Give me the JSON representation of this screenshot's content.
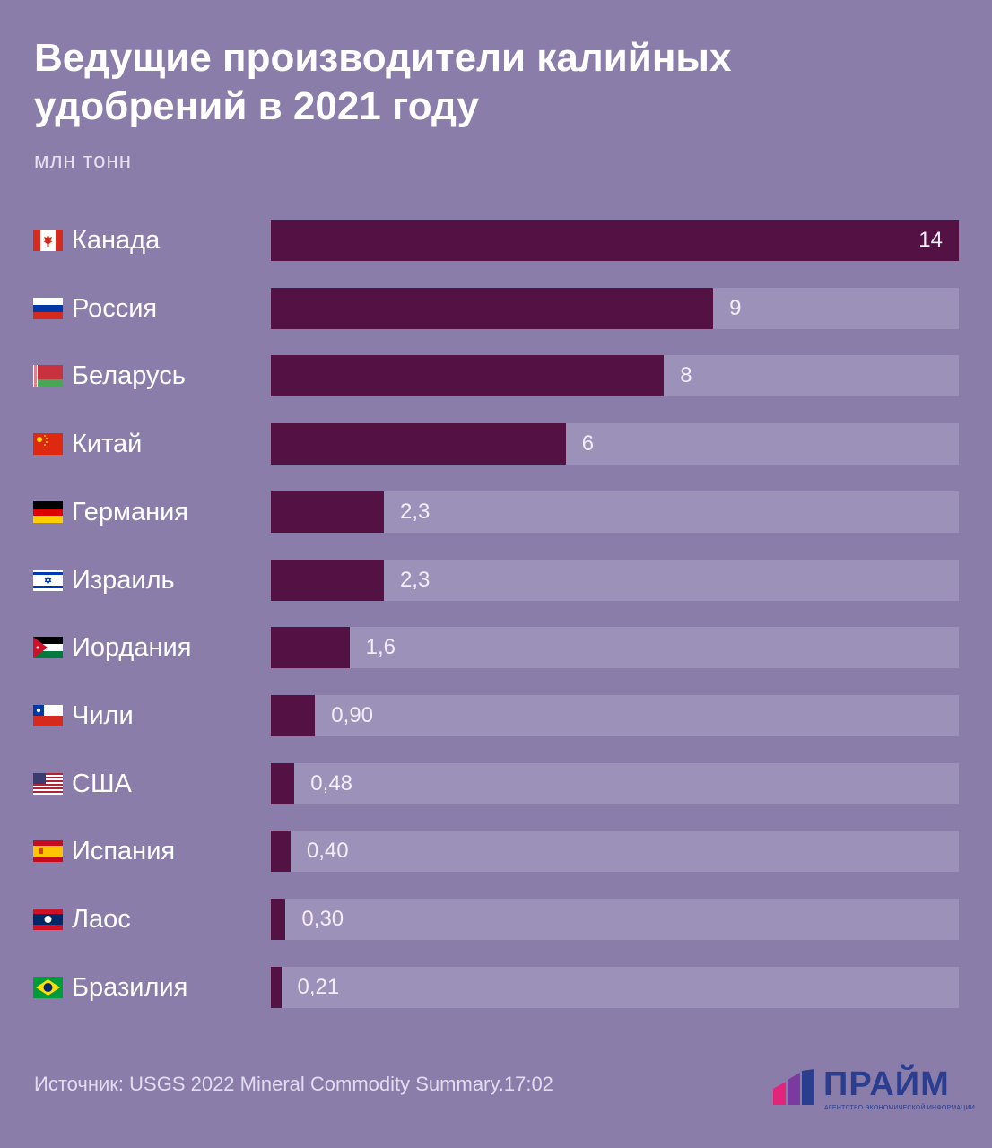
{
  "title": "Ведущие производители калийных удобрений в 2021 году",
  "subtitle": "млн тонн",
  "source": "Источник: USGS 2022 Mineral Commodity Summary.17:02",
  "logo": {
    "word": "ПРАЙМ",
    "tagline": "АГЕНТСТВО ЭКОНОМИЧЕСКОЙ ИНФОРМАЦИИ"
  },
  "colors": {
    "background": "#8a7daa",
    "bar": "#531243",
    "track": "#9b91b9"
  },
  "chart_data": {
    "type": "bar",
    "orientation": "horizontal",
    "xlim": [
      0,
      14
    ],
    "categories": [
      "Канада",
      "Россия",
      "Беларусь",
      "Китай",
      "Германия",
      "Израиль",
      "Иордания",
      "Чили",
      "США",
      "Испания",
      "Лаос",
      "Бразилия"
    ],
    "values": [
      14,
      9,
      8,
      6,
      2.3,
      2.3,
      1.6,
      0.9,
      0.48,
      0.4,
      0.3,
      0.21
    ],
    "labels": [
      "14",
      "9",
      "8",
      "6",
      "2,3",
      "2,3",
      "1,6",
      "0,90",
      "0,48",
      "0,40",
      "0,30",
      "0,21"
    ],
    "flag_icons": [
      "canada-flag-icon",
      "russia-flag-icon",
      "belarus-flag-icon",
      "china-flag-icon",
      "germany-flag-icon",
      "israel-flag-icon",
      "jordan-flag-icon",
      "chile-flag-icon",
      "usa-flag-icon",
      "spain-flag-icon",
      "laos-flag-icon",
      "brazil-flag-icon"
    ]
  }
}
